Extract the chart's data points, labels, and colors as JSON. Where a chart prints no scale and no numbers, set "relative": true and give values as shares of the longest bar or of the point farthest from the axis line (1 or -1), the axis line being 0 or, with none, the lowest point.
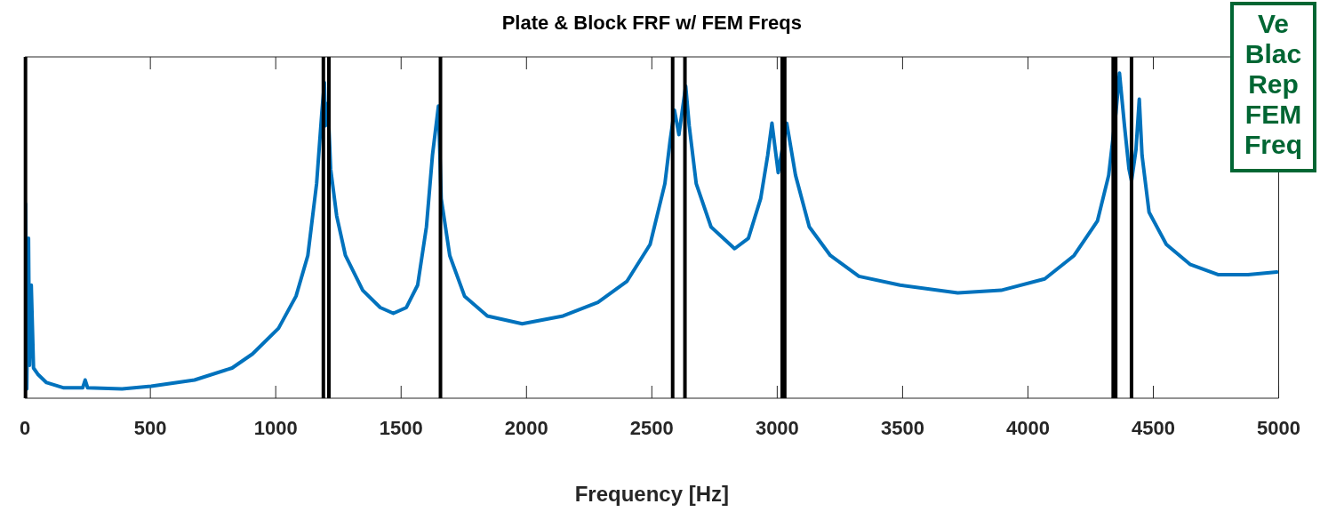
{
  "chart_data": {
    "type": "line",
    "title": "Plate & Block FRF w/ FEM Freqs",
    "xlabel": "Frequency [Hz]",
    "relative": true,
    "marker": "none",
    "grid": false,
    "legend": false,
    "xlim": [
      0,
      5000
    ],
    "xticks": [
      0,
      500,
      1000,
      1500,
      2000,
      2500,
      3000,
      3500,
      4000,
      4500,
      5000
    ],
    "x": [
      2,
      7,
      14,
      18,
      25,
      34,
      51,
      86,
      155,
      230,
      240,
      250,
      387,
      503,
      676,
      826,
      907,
      1011,
      1081,
      1128,
      1163,
      1184,
      1194,
      1198,
      1208,
      1219,
      1243,
      1278,
      1347,
      1417,
      1469,
      1521,
      1566,
      1601,
      1625,
      1649,
      1660,
      1694,
      1753,
      1844,
      1983,
      2146,
      2285,
      2400,
      2493,
      2552,
      2573,
      2590,
      2608,
      2635,
      2649,
      2677,
      2736,
      2830,
      2885,
      2934,
      2962,
      2979,
      3004,
      3038,
      3073,
      3128,
      3212,
      3326,
      3490,
      3720,
      3893,
      4067,
      4184,
      4277,
      4322,
      4351,
      4365,
      4385,
      4403,
      4413,
      4431,
      4444,
      4455,
      4483,
      4552,
      4646,
      4760,
      4878,
      4993
    ],
    "series": [
      {
        "color": "#0072bd",
        "values": [
          0.598,
          0.029,
          0.492,
          0.101,
          0.348,
          0.093,
          0.074,
          0.048,
          0.032,
          0.032,
          0.056,
          0.032,
          0.029,
          0.037,
          0.056,
          0.093,
          0.136,
          0.215,
          0.314,
          0.439,
          0.66,
          0.88,
          0.971,
          0.838,
          0.907,
          0.705,
          0.561,
          0.439,
          0.332,
          0.279,
          0.261,
          0.279,
          0.348,
          0.527,
          0.747,
          0.899,
          0.614,
          0.439,
          0.314,
          0.253,
          0.229,
          0.253,
          0.295,
          0.359,
          0.473,
          0.66,
          0.793,
          0.886,
          0.811,
          0.96,
          0.838,
          0.66,
          0.527,
          0.46,
          0.492,
          0.614,
          0.747,
          0.846,
          0.694,
          0.846,
          0.686,
          0.527,
          0.439,
          0.375,
          0.348,
          0.324,
          0.332,
          0.367,
          0.439,
          0.545,
          0.686,
          0.88,
          1,
          0.838,
          0.705,
          0.668,
          0.766,
          0.92,
          0.747,
          0.572,
          0.473,
          0.412,
          0.38,
          0.38,
          0.388
        ]
      }
    ],
    "ref_lines": [
      {
        "axis": "x",
        "value": 2,
        "color": "#000000"
      },
      {
        "axis": "x",
        "value": 1190,
        "color": "#000000"
      },
      {
        "axis": "x",
        "value": 1212,
        "color": "#000000"
      },
      {
        "axis": "x",
        "value": 1657,
        "color": "#000000"
      },
      {
        "axis": "x",
        "value": 2583,
        "color": "#000000"
      },
      {
        "axis": "x",
        "value": 2632,
        "color": "#000000"
      },
      {
        "axis": "x",
        "value": 3020,
        "color": "#000000"
      },
      {
        "axis": "x",
        "value": 3030,
        "color": "#000000"
      },
      {
        "axis": "x",
        "value": 4340,
        "color": "#000000"
      },
      {
        "axis": "x",
        "value": 4350,
        "color": "#000000"
      },
      {
        "axis": "x",
        "value": 4413,
        "color": "#000000"
      }
    ],
    "annotations": [
      "Ve\nBlac\nRep\nFEM\nFreq"
    ]
  }
}
